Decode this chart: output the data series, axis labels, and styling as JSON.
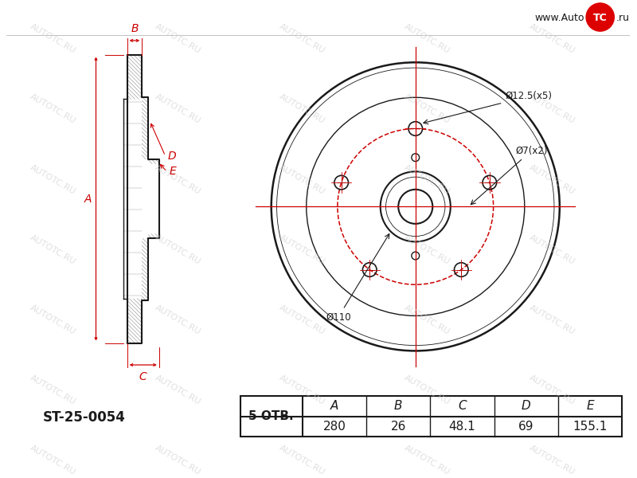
{
  "bg_color": "#ffffff",
  "line_color": "#1a1a1a",
  "red_color": "#cc0000",
  "watermark_color": "#cccccc",
  "part_number": "ST-25-0054",
  "holes": 5,
  "holes_label": "5 ОТВ.",
  "dim_A": "280",
  "dim_B": "26",
  "dim_C": "48.1",
  "dim_D": "69",
  "dim_E": "155.1",
  "label_phi110": "Ø110",
  "label_phi12": "Ø12.5(x5)",
  "label_phi7": "Ø7(x2)",
  "label_A": "A",
  "label_B": "B",
  "label_C": "C",
  "label_D": "D",
  "label_E": "E",
  "col_headers": [
    "A",
    "B",
    "C",
    "D",
    "E"
  ],
  "col_values": [
    "280",
    "26",
    "48.1",
    "69",
    "155.1"
  ]
}
